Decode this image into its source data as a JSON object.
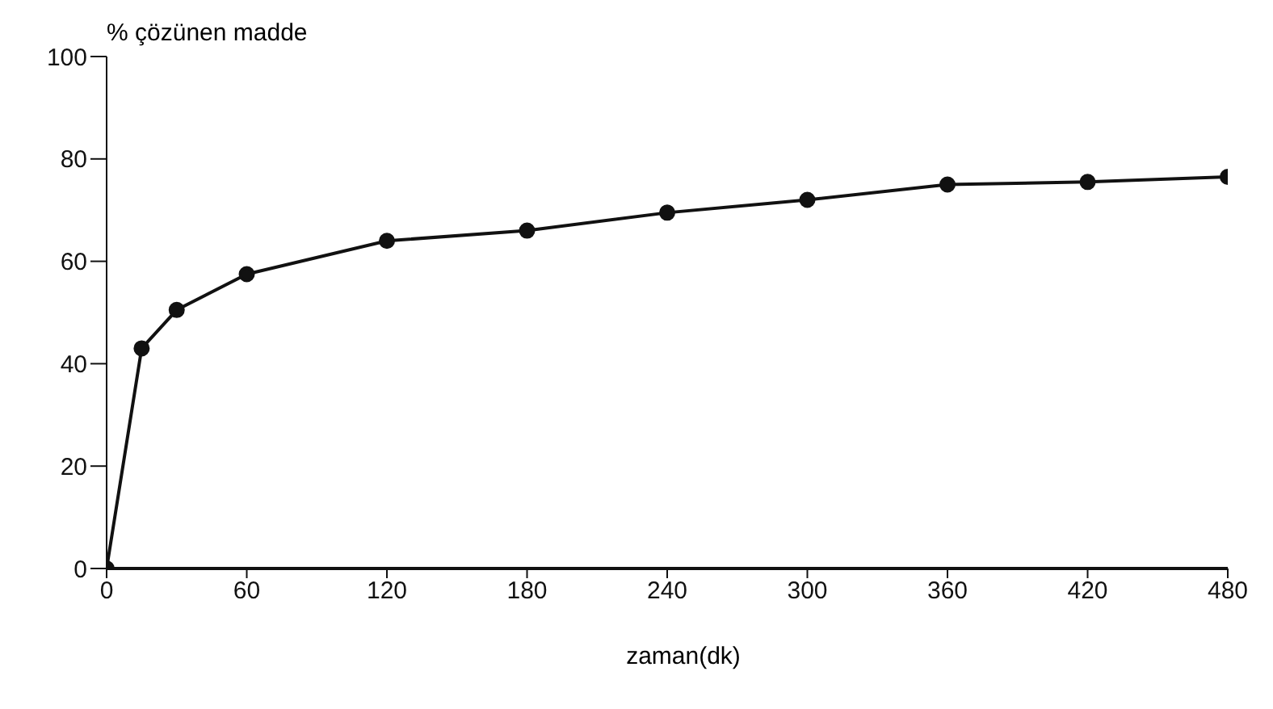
{
  "chart_data": {
    "type": "line",
    "ylabel": "% çözünen madde",
    "xlabel": "zaman(dk)",
    "x": [
      0,
      15,
      30,
      60,
      120,
      180,
      240,
      300,
      360,
      420,
      480
    ],
    "series": [
      {
        "color": "#111111",
        "values": [
          0,
          43,
          50.5,
          57.5,
          64,
          66,
          69.5,
          72,
          75,
          75.5,
          76.5
        ]
      }
    ],
    "xlim": [
      0,
      480
    ],
    "xticks": [
      0,
      60,
      120,
      180,
      240,
      300,
      360,
      420,
      480
    ],
    "ylim": [
      0,
      100
    ],
    "yticks": [
      0,
      20,
      40,
      60,
      80,
      100
    ],
    "marker": "circle",
    "line_style": "solid",
    "grid": false,
    "legend": false
  }
}
